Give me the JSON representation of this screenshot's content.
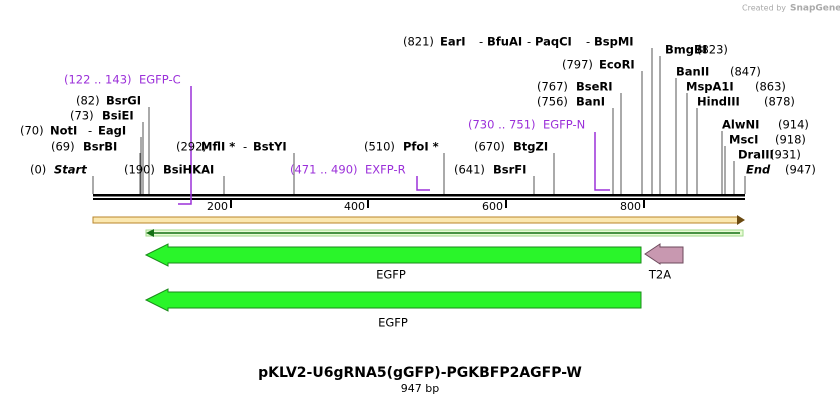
{
  "header": {
    "created_by": "Created by",
    "brand": "SnapGene"
  },
  "separator": "-",
  "sites": [
    {
      "position": "(0)",
      "names": [
        "Start"
      ]
    },
    {
      "position": "(69)",
      "names": [
        "BsrBI"
      ]
    },
    {
      "position": "(70)",
      "names": [
        "NotI",
        "EagI"
      ]
    },
    {
      "position": "(73)",
      "names": [
        "BsiEI"
      ]
    },
    {
      "position": "(82)",
      "names": [
        "BsrGI"
      ]
    },
    {
      "position": "(190)",
      "names": [
        "BsiHKAI"
      ]
    },
    {
      "position": "(292)",
      "names": [
        "MflI *",
        "BstYI"
      ]
    },
    {
      "position": "(510)",
      "names": [
        "PfoI *"
      ]
    },
    {
      "position": "(641)",
      "names": [
        "BsrFI"
      ]
    },
    {
      "position": "(670)",
      "names": [
        "BtgZI"
      ]
    },
    {
      "position": "(756)",
      "names": [
        "BanI"
      ]
    },
    {
      "position": "(767)",
      "names": [
        "BseRI"
      ]
    },
    {
      "position": "(797)",
      "names": [
        "EcoRI"
      ]
    },
    {
      "position": "(821)",
      "names": [
        "EarI",
        "BfuAI",
        "PaqCI",
        "BspMI"
      ]
    },
    {
      "position": "(823)",
      "names": [
        "BmgBI"
      ]
    },
    {
      "position": "(847)",
      "names": [
        "BanII"
      ]
    },
    {
      "position": "(863)",
      "names": [
        "MspA1I"
      ]
    },
    {
      "position": "(878)",
      "names": [
        "HindIII"
      ]
    },
    {
      "position": "(914)",
      "names": [
        "AlwNI"
      ]
    },
    {
      "position": "(918)",
      "names": [
        "MscI"
      ]
    },
    {
      "position": "(931)",
      "names": [
        "DraIII"
      ]
    },
    {
      "position": "(947)",
      "names": [
        "End"
      ]
    }
  ],
  "primers": [
    {
      "range": "(122 .. 143)",
      "name": "EGFP-C"
    },
    {
      "range": "(471 .. 490)",
      "name": "EXFP-R"
    },
    {
      "range": "(730 .. 751)",
      "name": "EGFP-N"
    }
  ],
  "ruler_ticks": [
    200,
    400,
    600,
    800
  ],
  "features": [
    {
      "name": "EGFP"
    },
    {
      "name": "T2A"
    },
    {
      "name": "EGFP"
    }
  ],
  "footer": {
    "title": "pKLV2-U6gRNA5(gGFP)-PGKBFP2AGFP-W",
    "length": "947 bp"
  }
}
